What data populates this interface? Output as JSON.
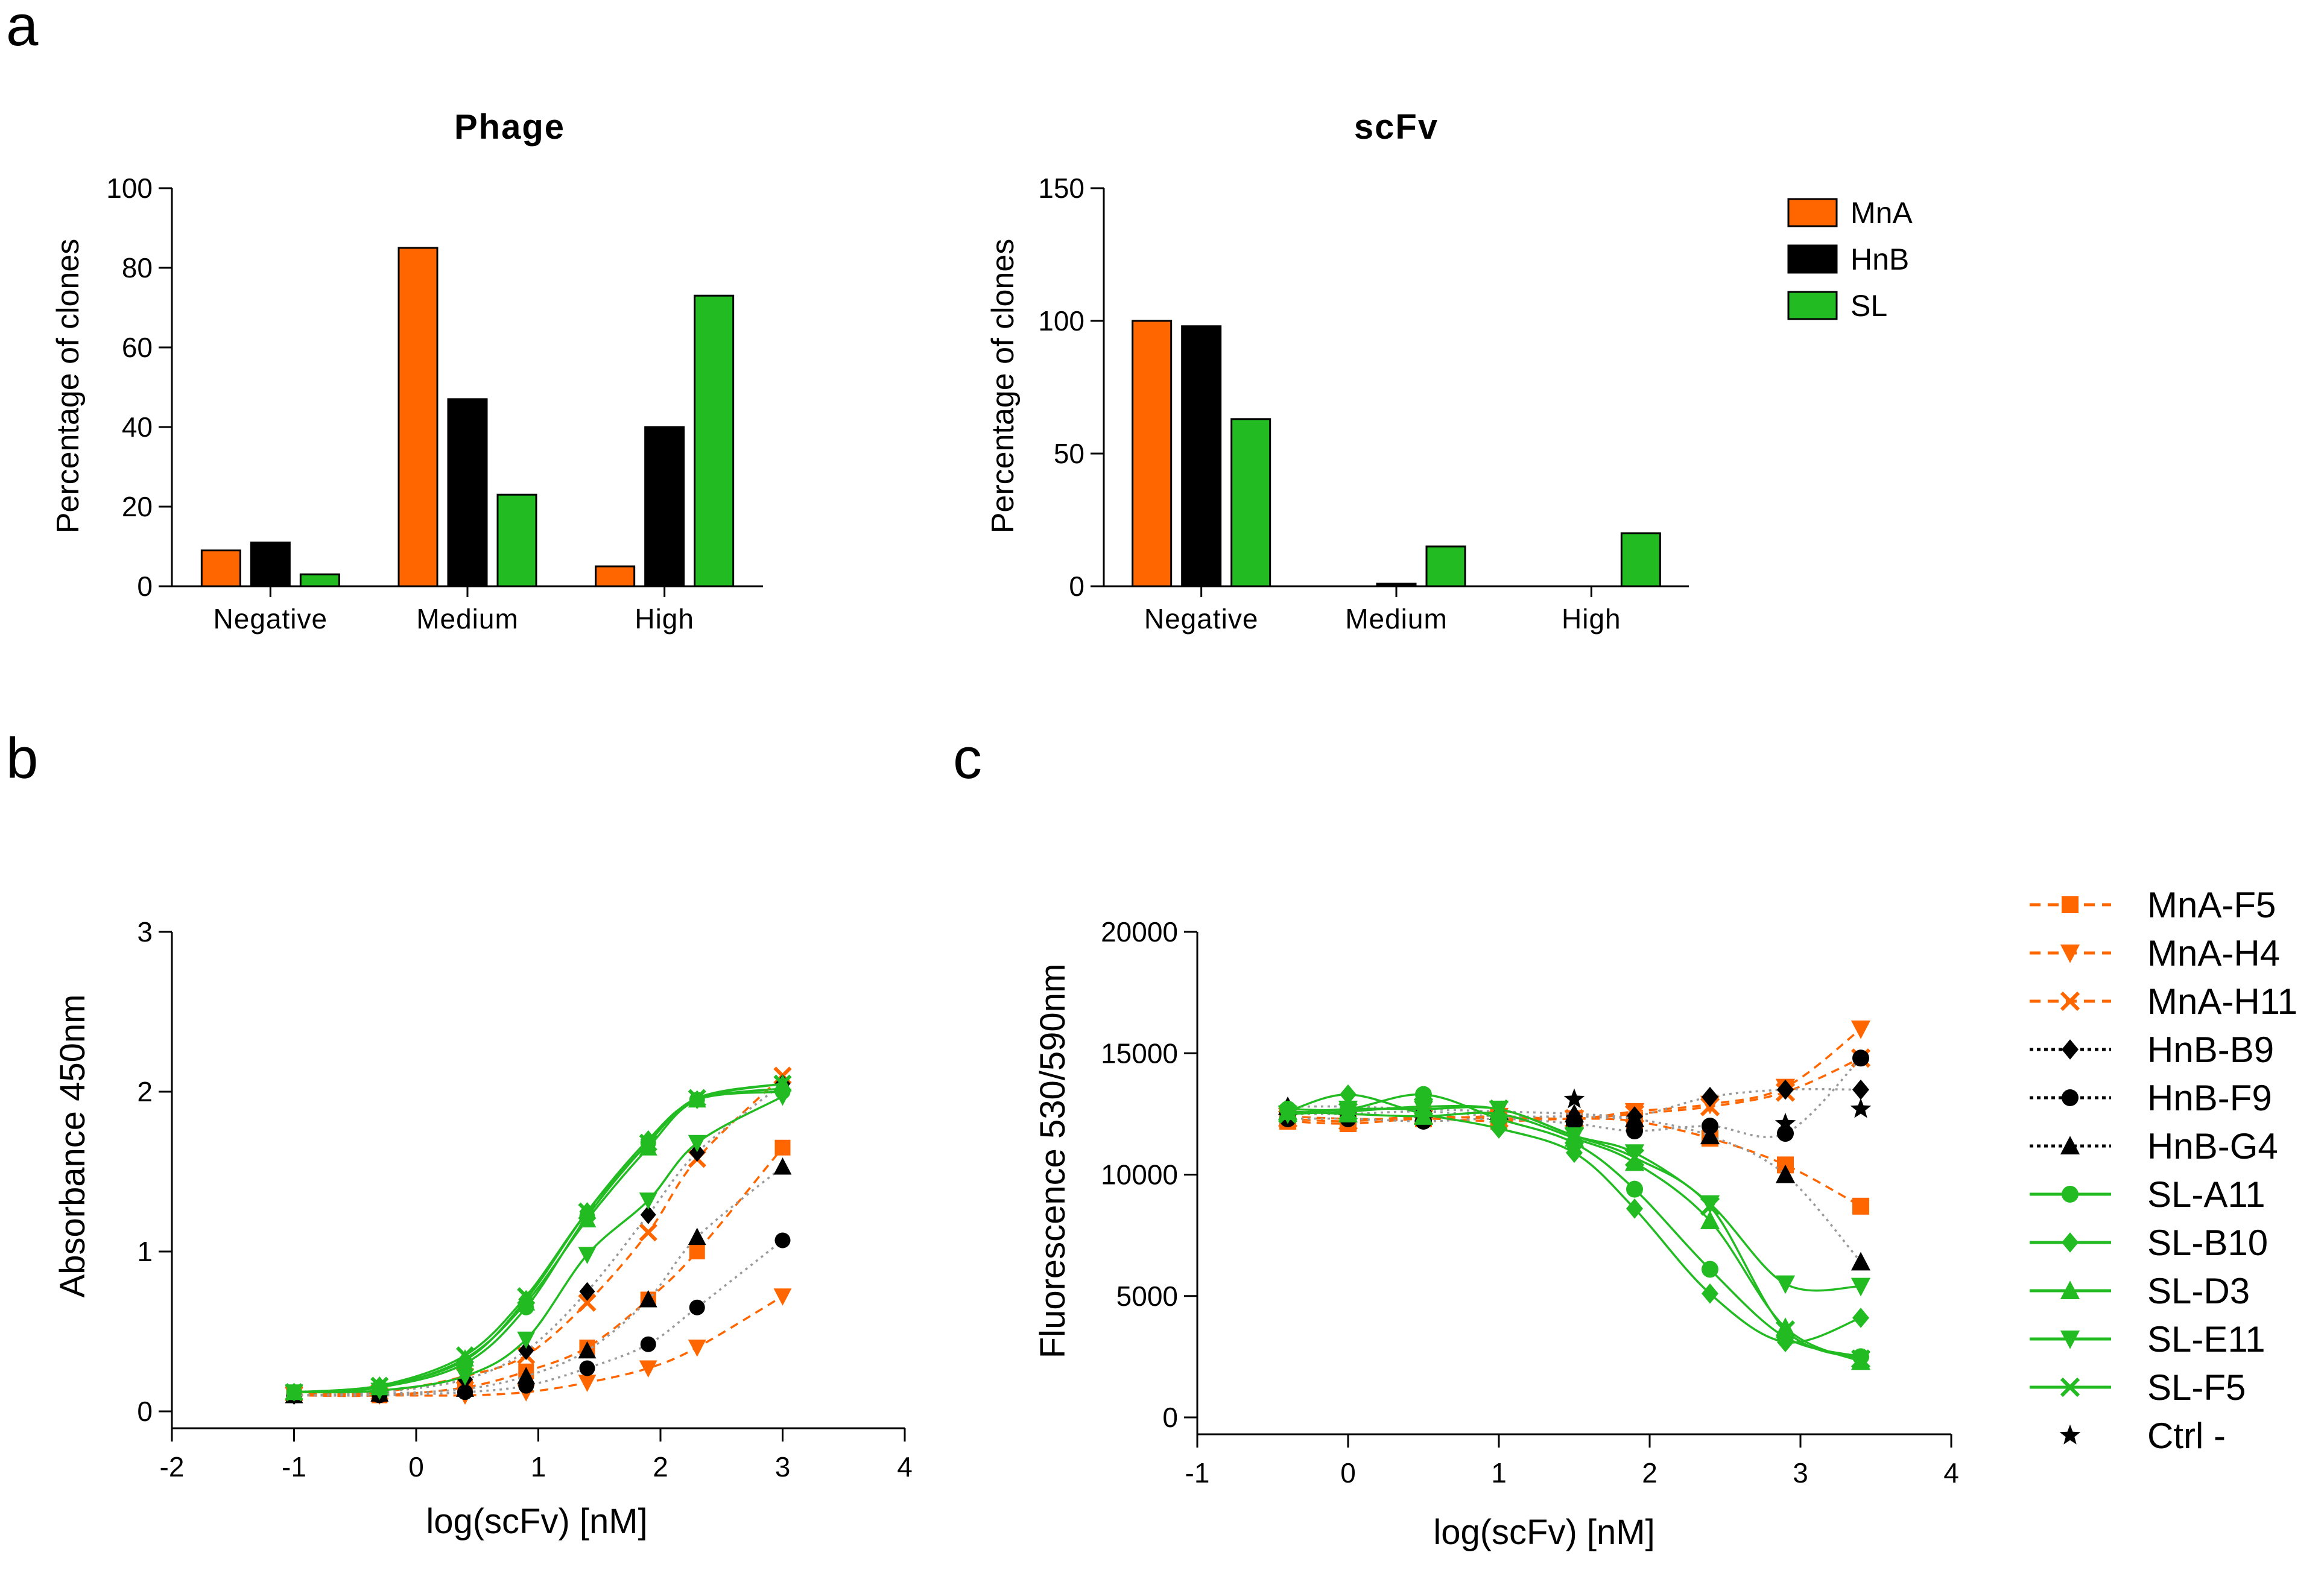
{
  "figure": {
    "panel_labels": [
      "a",
      "b",
      "c"
    ]
  },
  "colors": {
    "MnA": "#ff6600",
    "HnB": "#000000",
    "SL": "#22bb22",
    "Ctrl": "#000000",
    "grey_fit": "#999999"
  },
  "chart_data": [
    {
      "id": "phage",
      "type": "bar",
      "title": "Phage",
      "ylabel": "Percentage of clones",
      "xlabel": "",
      "categories": [
        "Negative",
        "Medium",
        "High"
      ],
      "ylim": [
        0,
        100
      ],
      "yticks": [
        0,
        20,
        40,
        60,
        80,
        100
      ],
      "series": [
        {
          "name": "MnA",
          "values": [
            9,
            85,
            5
          ]
        },
        {
          "name": "HnB",
          "values": [
            11,
            47,
            40
          ]
        },
        {
          "name": "SL",
          "values": [
            3,
            23,
            73
          ]
        }
      ]
    },
    {
      "id": "scfv",
      "type": "bar",
      "title": "scFv",
      "ylabel": "Percentage of clones",
      "xlabel": "",
      "categories": [
        "Negative",
        "Medium",
        "High"
      ],
      "ylim": [
        0,
        150
      ],
      "yticks": [
        0,
        50,
        100,
        150
      ],
      "legend": [
        "MnA",
        "HnB",
        "SL"
      ],
      "series": [
        {
          "name": "MnA",
          "values": [
            100,
            0,
            0
          ]
        },
        {
          "name": "HnB",
          "values": [
            98,
            1,
            0
          ]
        },
        {
          "name": "SL",
          "values": [
            63,
            15,
            20
          ]
        }
      ]
    },
    {
      "id": "absorbance",
      "type": "line",
      "xlabel": "log(scFv) [nM]",
      "ylabel": "Absorbance 450nm",
      "xlim": [
        -2,
        4
      ],
      "ylim": [
        0,
        3
      ],
      "xticks": [
        -2,
        -1,
        0,
        1,
        2,
        3,
        4
      ],
      "yticks": [
        0,
        1,
        2,
        3
      ],
      "x": [
        -1,
        -0.3,
        0.4,
        0.9,
        1.4,
        1.9,
        2.3,
        3.0
      ],
      "series": [
        {
          "name": "MnA-F5",
          "group": "MnA",
          "marker": "square",
          "values": [
            0.1,
            0.1,
            0.15,
            0.25,
            0.4,
            0.7,
            1.0,
            1.65
          ]
        },
        {
          "name": "MnA-H4",
          "group": "MnA",
          "marker": "tri-down",
          "values": [
            0.1,
            0.1,
            0.1,
            0.12,
            0.18,
            0.27,
            0.4,
            0.72
          ]
        },
        {
          "name": "MnA-H11",
          "group": "MnA",
          "marker": "x",
          "values": [
            0.11,
            0.12,
            0.22,
            0.35,
            0.68,
            1.12,
            1.58,
            2.1
          ]
        },
        {
          "name": "HnB-B9",
          "group": "HnB",
          "marker": "diamond",
          "values": [
            0.1,
            0.12,
            0.2,
            0.38,
            0.75,
            1.23,
            1.62,
            2.05
          ]
        },
        {
          "name": "HnB-F9",
          "group": "HnB",
          "marker": "circle",
          "values": [
            0.1,
            0.1,
            0.12,
            0.16,
            0.27,
            0.42,
            0.65,
            1.07
          ]
        },
        {
          "name": "HnB-G4",
          "group": "HnB",
          "marker": "triangle",
          "values": [
            0.1,
            0.11,
            0.14,
            0.22,
            0.38,
            0.7,
            1.09,
            1.53
          ]
        },
        {
          "name": "SL-A11",
          "group": "SL",
          "marker": "circle",
          "values": [
            0.12,
            0.15,
            0.3,
            0.65,
            1.22,
            1.68,
            1.95,
            2.0
          ]
        },
        {
          "name": "SL-B10",
          "group": "SL",
          "marker": "diamond",
          "values": [
            0.12,
            0.16,
            0.32,
            0.7,
            1.25,
            1.7,
            1.95,
            2.02
          ]
        },
        {
          "name": "SL-D3",
          "group": "SL",
          "marker": "triangle",
          "values": [
            0.12,
            0.15,
            0.33,
            0.68,
            1.2,
            1.65,
            1.95,
            2.05
          ]
        },
        {
          "name": "SL-E11",
          "group": "SL",
          "marker": "tri-down",
          "values": [
            0.12,
            0.13,
            0.22,
            0.45,
            0.98,
            1.32,
            1.68,
            1.97
          ]
        },
        {
          "name": "SL-F5",
          "group": "SL",
          "marker": "x",
          "values": [
            0.12,
            0.16,
            0.35,
            0.72,
            1.25,
            1.68,
            1.96,
            2.05
          ]
        }
      ]
    },
    {
      "id": "fluorescence",
      "type": "line",
      "xlabel": "log(scFv) [nM]",
      "ylabel": "Fluorescence 530/590nm",
      "xlim": [
        -1,
        4
      ],
      "ylim": [
        0,
        20000
      ],
      "xticks": [
        -1,
        0,
        1,
        2,
        3,
        4
      ],
      "yticks": [
        0,
        5000,
        10000,
        15000,
        20000
      ],
      "x": [
        -0.4,
        0,
        0.5,
        1.0,
        1.5,
        1.9,
        2.4,
        2.9,
        3.4
      ],
      "series": [
        {
          "name": "MnA-F5",
          "group": "MnA",
          "marker": "square",
          "values": [
            12200,
            12100,
            12300,
            12200,
            12300,
            12200,
            11500,
            10400,
            8700
          ]
        },
        {
          "name": "MnA-H4",
          "group": "MnA",
          "marker": "tri-down",
          "values": [
            12400,
            12300,
            12300,
            12400,
            12300,
            12600,
            12900,
            13600,
            16000
          ]
        },
        {
          "name": "MnA-H11",
          "group": "MnA",
          "marker": "x",
          "values": [
            12300,
            12200,
            12400,
            12300,
            12300,
            12500,
            12800,
            13400,
            14800
          ]
        },
        {
          "name": "HnB-B9",
          "group": "HnB",
          "marker": "diamond",
          "values": [
            12500,
            12500,
            12600,
            12400,
            12400,
            12400,
            13200,
            13500,
            13500
          ]
        },
        {
          "name": "HnB-F9",
          "group": "HnB",
          "marker": "circle",
          "values": [
            12300,
            12300,
            12200,
            12300,
            12100,
            11800,
            12000,
            11700,
            14800
          ]
        },
        {
          "name": "HnB-G4",
          "group": "HnB",
          "marker": "triangle",
          "values": [
            12800,
            12800,
            12700,
            12600,
            12500,
            12300,
            11600,
            10000,
            6400
          ]
        },
        {
          "name": "SL-A11",
          "group": "SL",
          "marker": "circle",
          "values": [
            12700,
            12700,
            13300,
            12300,
            11300,
            9400,
            6100,
            3300,
            2500
          ]
        },
        {
          "name": "SL-B10",
          "group": "SL",
          "marker": "diamond",
          "values": [
            12600,
            13300,
            12500,
            11900,
            10900,
            8600,
            5100,
            3100,
            4100
          ]
        },
        {
          "name": "SL-D3",
          "group": "SL",
          "marker": "triangle",
          "values": [
            12600,
            12500,
            12400,
            12500,
            11500,
            10500,
            8100,
            3700,
            2300
          ]
        },
        {
          "name": "SL-E11",
          "group": "SL",
          "marker": "tri-down",
          "values": [
            12500,
            12700,
            12700,
            12700,
            11600,
            10900,
            8800,
            5500,
            5400
          ]
        },
        {
          "name": "SL-F5",
          "group": "SL",
          "marker": "x",
          "values": [
            12500,
            12600,
            12800,
            12700,
            11600,
            10700,
            8700,
            3600,
            2400
          ]
        },
        {
          "name": "Ctrl -",
          "group": "Ctrl",
          "marker": "star",
          "values": [
            null,
            null,
            null,
            null,
            13100,
            null,
            null,
            12100,
            12700
          ]
        }
      ]
    }
  ],
  "legend_c": [
    "MnA-F5",
    "MnA-H4",
    "MnA-H11",
    "HnB-B9",
    "HnB-F9",
    "HnB-G4",
    "SL-A11",
    "SL-B10",
    "SL-D3",
    "SL-E11",
    "SL-F5",
    "Ctrl -"
  ]
}
